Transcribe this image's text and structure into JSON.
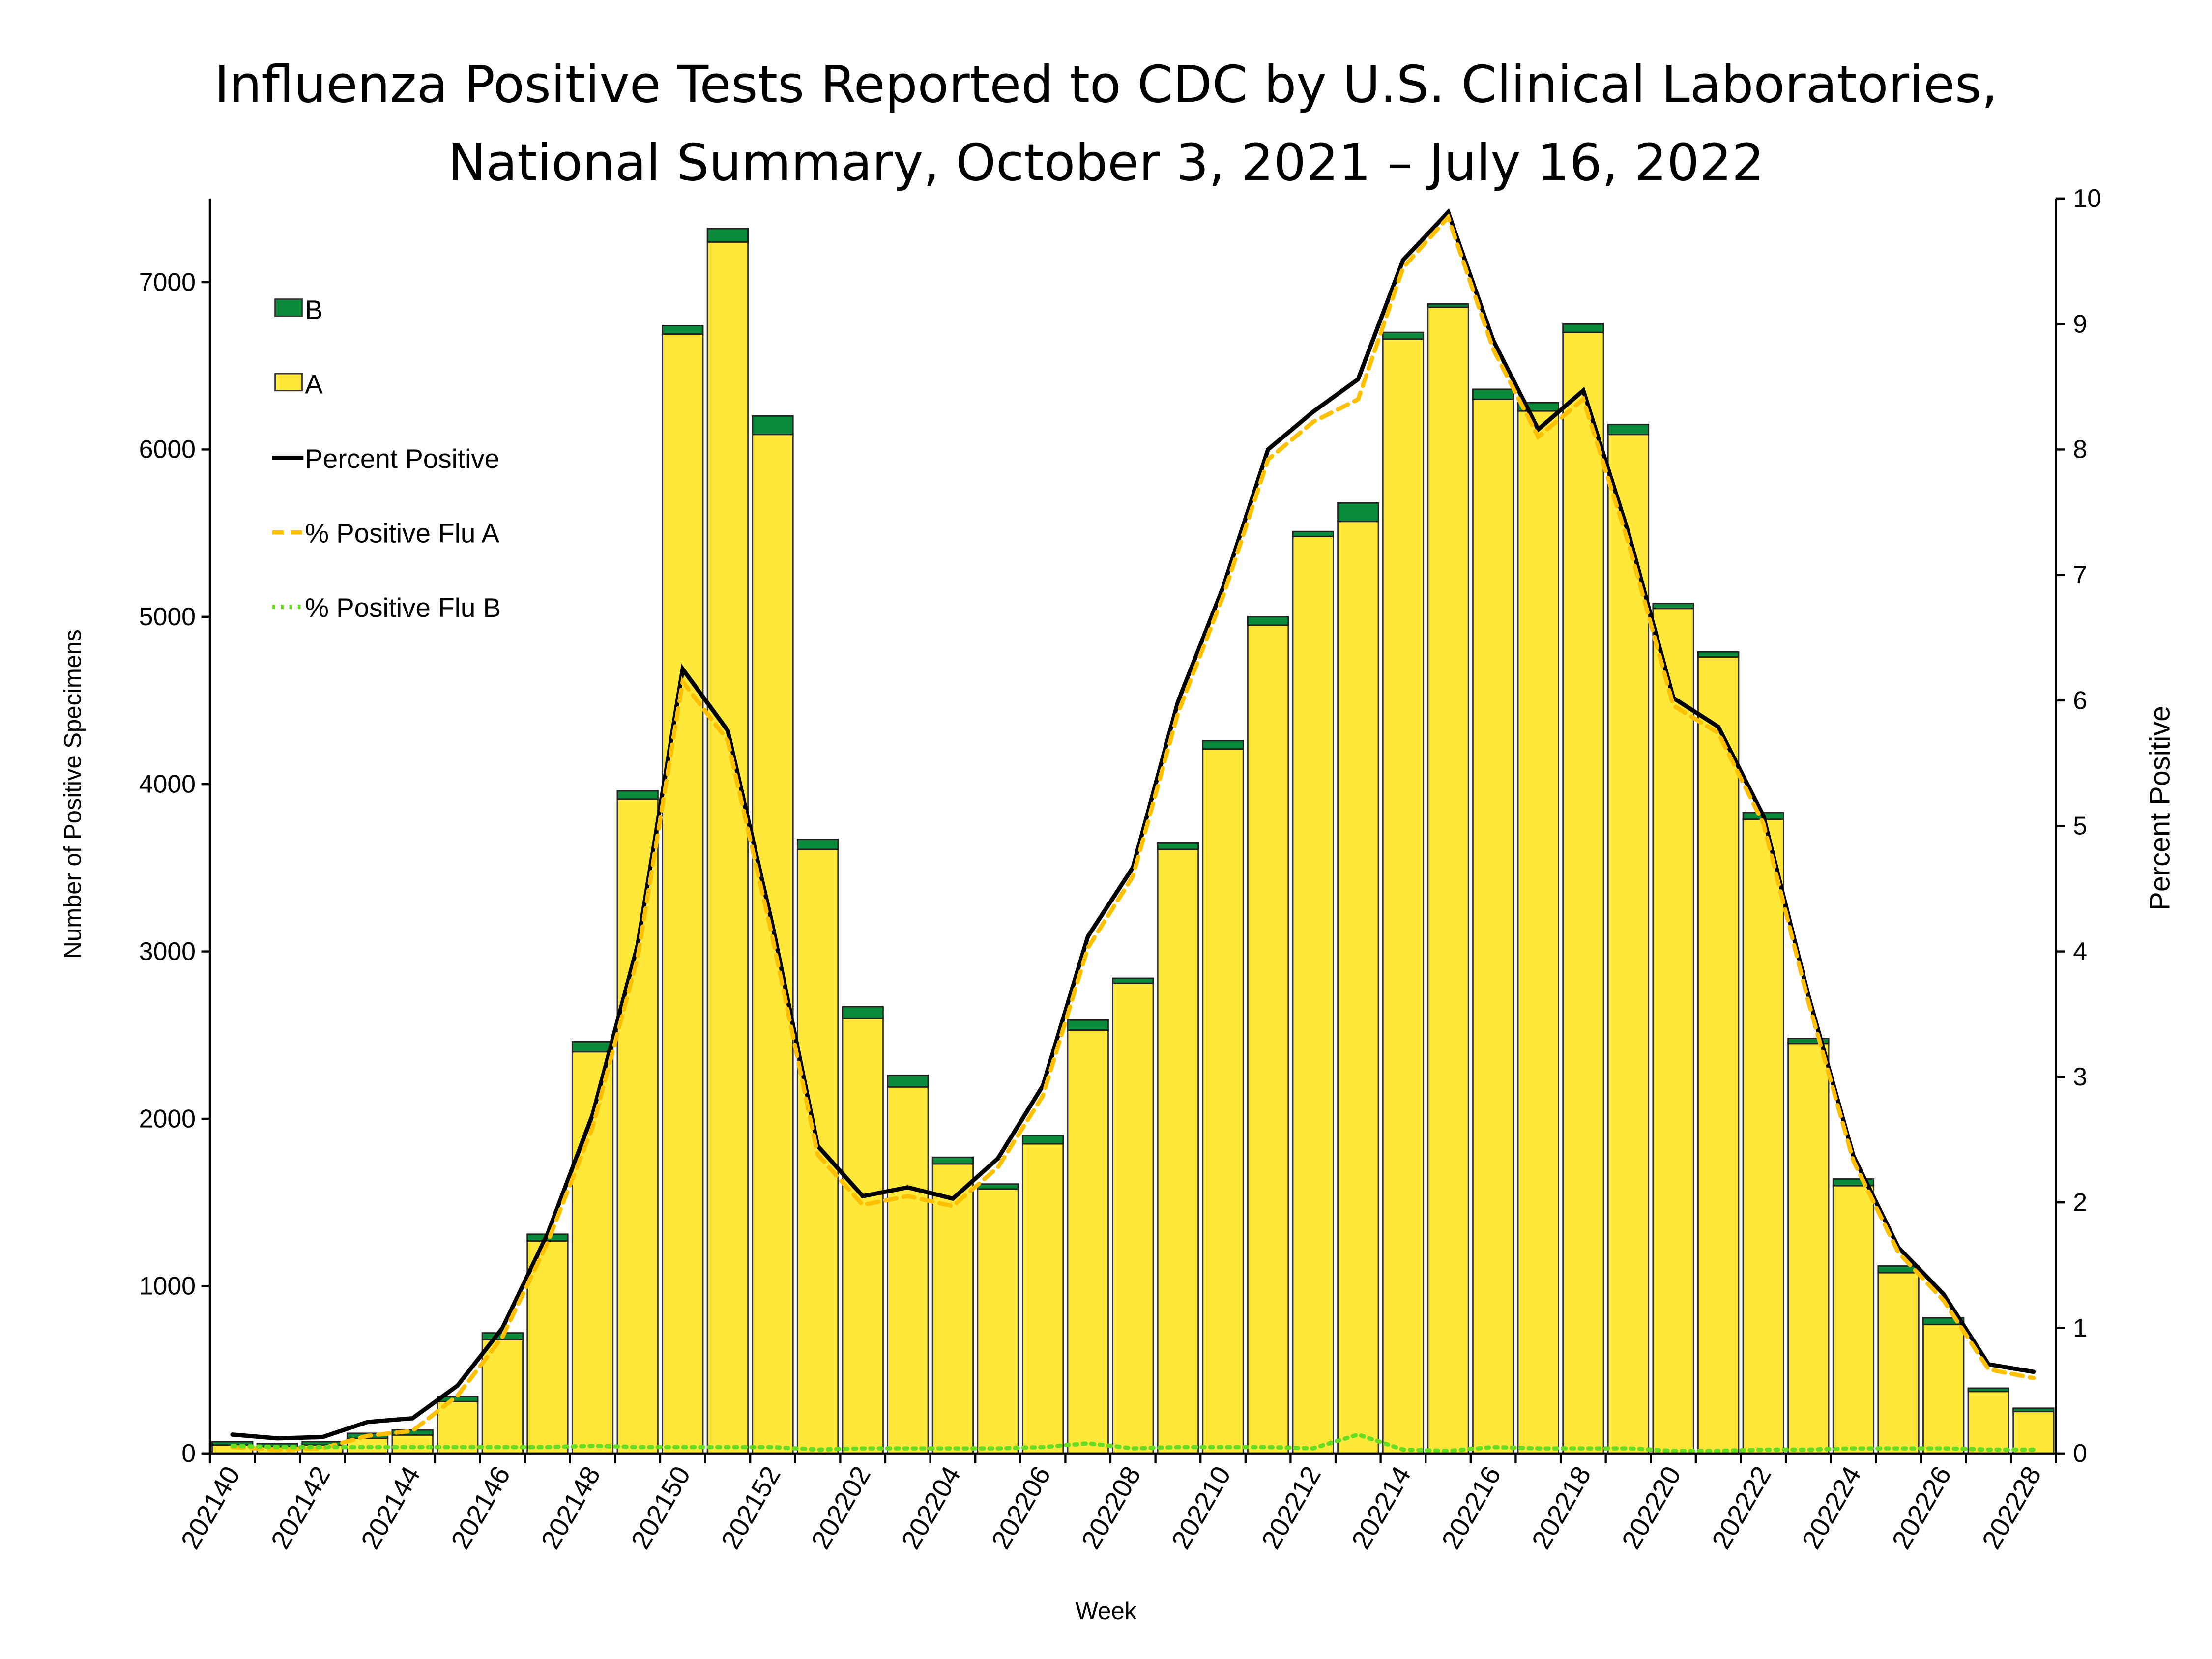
{
  "chart_data": {
    "type": "bar",
    "title_lines": [
      "Influenza Positive Tests Reported to CDC by U.S. Clinical Laboratories,",
      "National Summary, October 3, 2021 – July 16, 2022"
    ],
    "xlabel": "Week",
    "ylabel": "Number of Positive Specimens",
    "y2label": "Percent Positive",
    "ylim": [
      0,
      7500
    ],
    "y2lim": [
      0,
      10
    ],
    "yticks": [
      0,
      1000,
      2000,
      3000,
      4000,
      5000,
      6000,
      7000
    ],
    "y2ticks": [
      0,
      1,
      2,
      3,
      4,
      5,
      6,
      7,
      8,
      9,
      10
    ],
    "grid": false,
    "legend_position": "top-left",
    "categories": [
      "202140",
      "202141",
      "202142",
      "202143",
      "202144",
      "202145",
      "202146",
      "202147",
      "202148",
      "202149",
      "202150",
      "202151",
      "202152",
      "202201",
      "202202",
      "202203",
      "202204",
      "202205",
      "202206",
      "202207",
      "202208",
      "202209",
      "202210",
      "202211",
      "202212",
      "202213",
      "202214",
      "202215",
      "202216",
      "202217",
      "202218",
      "202219",
      "202220",
      "202221",
      "202222",
      "202223",
      "202224",
      "202225",
      "202226",
      "202227",
      "202228"
    ],
    "tick_labels": [
      "202140",
      "202142",
      "202144",
      "202146",
      "202148",
      "202150",
      "202152",
      "202202",
      "202204",
      "202206",
      "202208",
      "202210",
      "202212",
      "202214",
      "202216",
      "202218",
      "202220",
      "202222",
      "202224",
      "202226",
      "202228"
    ],
    "series": [
      {
        "name": "B",
        "kind": "stacked-bar",
        "color": "#0a8a3a",
        "values": [
          20,
          18,
          20,
          30,
          30,
          30,
          40,
          40,
          60,
          50,
          50,
          80,
          110,
          60,
          70,
          70,
          40,
          30,
          50,
          60,
          30,
          40,
          50,
          50,
          30,
          110,
          40,
          20,
          60,
          50,
          50,
          60,
          30,
          30,
          40,
          30,
          40,
          40,
          40,
          20,
          20
        ]
      },
      {
        "name": "A",
        "kind": "stacked-bar",
        "color": "#ffe83a",
        "values": [
          50,
          40,
          50,
          90,
          110,
          310,
          680,
          1270,
          2400,
          3910,
          6690,
          7240,
          6090,
          3610,
          2600,
          2190,
          1730,
          1580,
          1850,
          2530,
          2810,
          3610,
          4210,
          4950,
          5480,
          5570,
          6660,
          6850,
          6300,
          6230,
          6700,
          6090,
          5050,
          4760,
          3790,
          2450,
          1600,
          1080,
          770,
          370,
          250
        ]
      },
      {
        "name": "Percent Positive",
        "kind": "line",
        "axis": "right",
        "color": "#000000",
        "values": [
          0.15,
          0.12,
          0.13,
          0.25,
          0.28,
          0.54,
          1.0,
          1.75,
          2.7,
          4.05,
          6.25,
          5.76,
          4.2,
          2.45,
          2.05,
          2.12,
          2.03,
          2.35,
          2.93,
          4.12,
          4.67,
          5.99,
          6.9,
          8.0,
          8.3,
          8.56,
          9.51,
          9.89,
          8.87,
          8.16,
          8.47,
          7.34,
          6.02,
          5.79,
          5.08,
          3.65,
          2.37,
          1.64,
          1.27,
          0.71,
          0.65
        ]
      },
      {
        "name": "% Positive Flu A",
        "kind": "dashed-line",
        "axis": "right",
        "color": "#ffc000",
        "values": [
          0.05,
          0.03,
          0.04,
          0.14,
          0.18,
          0.46,
          0.93,
          1.68,
          2.6,
          3.95,
          6.15,
          5.68,
          4.1,
          2.38,
          1.98,
          2.05,
          1.97,
          2.28,
          2.85,
          4.03,
          4.6,
          5.9,
          6.83,
          7.92,
          8.22,
          8.4,
          9.45,
          9.85,
          8.8,
          8.1,
          8.4,
          7.26,
          5.96,
          5.74,
          5.02,
          3.6,
          2.33,
          1.6,
          1.22,
          0.67,
          0.6
        ]
      },
      {
        "name": "% Positive Flu B",
        "kind": "dotted-line",
        "axis": "right",
        "color": "#66dd22",
        "values": [
          0.06,
          0.05,
          0.05,
          0.05,
          0.05,
          0.05,
          0.05,
          0.05,
          0.06,
          0.05,
          0.05,
          0.05,
          0.05,
          0.03,
          0.04,
          0.04,
          0.04,
          0.04,
          0.05,
          0.08,
          0.04,
          0.05,
          0.05,
          0.05,
          0.04,
          0.15,
          0.03,
          0.02,
          0.05,
          0.04,
          0.04,
          0.04,
          0.02,
          0.02,
          0.03,
          0.03,
          0.04,
          0.04,
          0.04,
          0.03,
          0.03
        ]
      }
    ]
  }
}
